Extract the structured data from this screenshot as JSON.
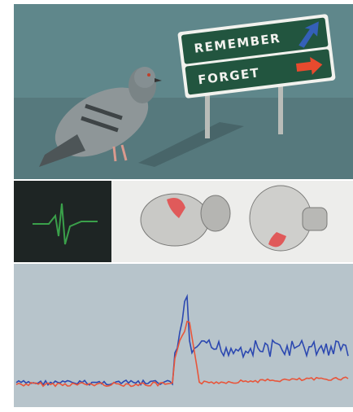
{
  "sign": {
    "lines": [
      "REMEMBER",
      "FORGET"
    ]
  }
}
